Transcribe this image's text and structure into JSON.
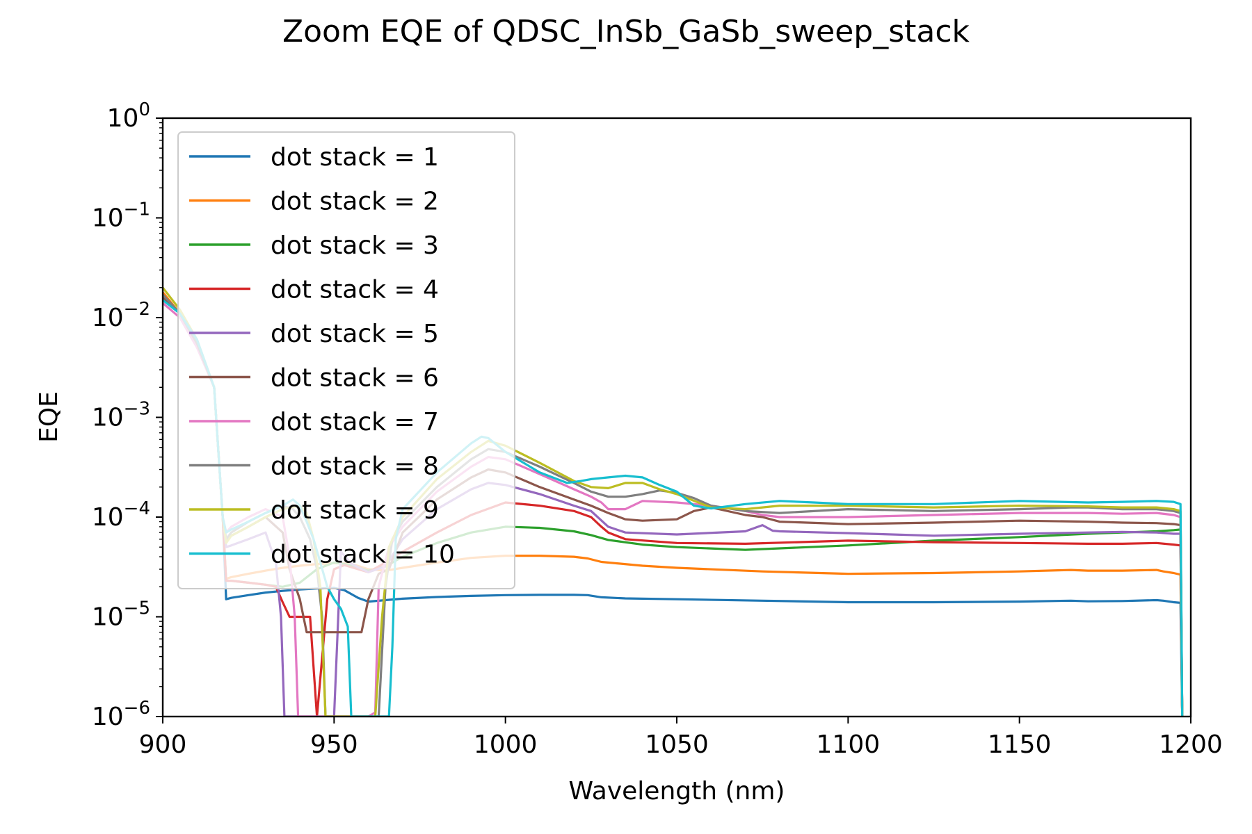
{
  "chart_data": {
    "type": "line",
    "title": "Zoom EQE of QDSC_InSb_GaSb_sweep_stack",
    "xlabel": "Wavelength (nm)",
    "ylabel": "EQE",
    "xlim": [
      900,
      1200
    ],
    "ylim": [
      1e-06,
      1
    ],
    "y_scale": "log",
    "x_ticks": [
      900,
      950,
      1000,
      1050,
      1100,
      1150,
      1200
    ],
    "x_tick_labels": [
      "900",
      "950",
      "1000",
      "1050",
      "1100",
      "1150",
      "1200"
    ],
    "y_ticks": [
      1e-06,
      1e-05,
      0.0001,
      0.001,
      0.01,
      0.1,
      1
    ],
    "y_tick_exponents": [
      "−6",
      "−5",
      "−4",
      "−3",
      "−2",
      "−1",
      "0"
    ],
    "y_tick_base": "10",
    "legend_position": "upper-left",
    "grid": false,
    "series": [
      {
        "name": "dot stack = 1",
        "color": "#1f77b4",
        "x": [
          900,
          905,
          910,
          915,
          917.5,
          918.5,
          920,
          925,
          930,
          935,
          940,
          945,
          950,
          953,
          957,
          960,
          965,
          970,
          980,
          990,
          1000,
          1010,
          1020,
          1024,
          1028,
          1035,
          1050,
          1075,
          1100,
          1125,
          1150,
          1165,
          1170,
          1180,
          1190,
          1192,
          1195,
          1197,
          1197.5
        ],
        "y": [
          0.017,
          0.011,
          0.0055,
          0.002,
          0.0001,
          1.5e-05,
          1.55e-05,
          1.65e-05,
          1.75e-05,
          1.82e-05,
          1.88e-05,
          1.92e-05,
          1.95e-05,
          1.85e-05,
          1.55e-05,
          1.42e-05,
          1.47e-05,
          1.52e-05,
          1.58e-05,
          1.62e-05,
          1.65e-05,
          1.66e-05,
          1.66e-05,
          1.65e-05,
          1.57e-05,
          1.53e-05,
          1.5e-05,
          1.45e-05,
          1.4e-05,
          1.4e-05,
          1.42e-05,
          1.45e-05,
          1.43e-05,
          1.44e-05,
          1.47e-05,
          1.45e-05,
          1.4e-05,
          1.38e-05,
          1e-06
        ]
      },
      {
        "name": "dot stack = 2",
        "color": "#ff7f0e",
        "x": [
          900,
          905,
          910,
          915,
          917.5,
          918.5,
          920,
          925,
          930,
          935,
          940,
          945,
          950,
          955,
          960,
          965,
          970,
          980,
          990,
          1000,
          1010,
          1020,
          1024,
          1028,
          1040,
          1050,
          1075,
          1100,
          1125,
          1150,
          1165,
          1170,
          1180,
          1190,
          1192,
          1195,
          1197,
          1197.5
        ],
        "y": [
          0.018,
          0.011,
          0.0055,
          0.002,
          0.0001,
          2.4e-05,
          2.5e-05,
          2.7e-05,
          2.9e-05,
          3.1e-05,
          3.25e-05,
          3.38e-05,
          3.45e-05,
          3.4e-05,
          3e-05,
          2.9e-05,
          3.1e-05,
          3.5e-05,
          3.9e-05,
          4.1e-05,
          4.1e-05,
          4e-05,
          3.85e-05,
          3.55e-05,
          3.25e-05,
          3.1e-05,
          2.85e-05,
          2.7e-05,
          2.75e-05,
          2.85e-05,
          2.95e-05,
          2.9e-05,
          2.9e-05,
          2.95e-05,
          2.85e-05,
          2.75e-05,
          2.65e-05,
          1e-06
        ]
      },
      {
        "name": "dot stack = 3",
        "color": "#2ca02c",
        "x": [
          900,
          905,
          910,
          915,
          917.5,
          918.5,
          920,
          925,
          930,
          935,
          940,
          945,
          950,
          955,
          960,
          965,
          970,
          980,
          990,
          1000,
          1010,
          1020,
          1025,
          1030,
          1040,
          1050,
          1070,
          1100,
          1125,
          1150,
          1170,
          1180,
          1190,
          1195,
          1197,
          1197.5
        ],
        "y": [
          0.017,
          0.011,
          0.0055,
          0.002,
          0.0001,
          2.3e-05,
          2.3e-05,
          2.2e-05,
          2.1e-05,
          2e-05,
          2.2e-05,
          3e-05,
          3.5e-05,
          3.3e-05,
          2.9e-05,
          3.2e-05,
          4e-05,
          5.5e-05,
          7e-05,
          8e-05,
          7.8e-05,
          7.2e-05,
          6.6e-05,
          5.9e-05,
          5.3e-05,
          5e-05,
          4.7e-05,
          5.2e-05,
          5.8e-05,
          6.3e-05,
          6.8e-05,
          7e-05,
          7.2e-05,
          7.4e-05,
          7.5e-05,
          1e-06
        ]
      },
      {
        "name": "dot stack = 4",
        "color": "#d62728",
        "x": [
          900,
          905,
          910,
          915,
          917.5,
          918.5,
          920,
          925,
          930,
          933,
          935,
          937,
          940,
          943,
          945,
          948,
          950,
          953,
          957,
          960,
          965,
          970,
          980,
          990,
          1000,
          1010,
          1020,
          1025,
          1028,
          1030,
          1035,
          1050,
          1070,
          1100,
          1125,
          1150,
          1170,
          1180,
          1190,
          1195,
          1197,
          1197.5
        ],
        "y": [
          0.017,
          0.011,
          0.0055,
          0.002,
          0.0001,
          2.3e-05,
          2.3e-05,
          2.2e-05,
          2.1e-05,
          2e-05,
          1.4e-05,
          1e-05,
          1e-05,
          1e-05,
          1e-06,
          1.5e-05,
          3e-05,
          3.3e-05,
          3e-05,
          2.8e-05,
          3.5e-05,
          4.5e-05,
          7e-05,
          0.000105,
          0.00014,
          0.00013,
          0.000115,
          0.0001,
          8e-05,
          7e-05,
          6e-05,
          5.5e-05,
          5.4e-05,
          5.8e-05,
          5.6e-05,
          5.5e-05,
          5.4e-05,
          5.4e-05,
          5.5e-05,
          5.3e-05,
          5.2e-05,
          1e-06
        ]
      },
      {
        "name": "dot stack = 5",
        "color": "#9467bd",
        "x": [
          900,
          905,
          910,
          915,
          917.5,
          918.5,
          920,
          925,
          930,
          933,
          934.5,
          935.5,
          936.5,
          944,
          948,
          950,
          952,
          955,
          960,
          965,
          970,
          980,
          990,
          995,
          1000,
          1010,
          1020,
          1025,
          1030,
          1035,
          1050,
          1070,
          1075,
          1078,
          1080,
          1100,
          1125,
          1150,
          1170,
          1180,
          1190,
          1195,
          1197,
          1197.5
        ],
        "y": [
          0.016,
          0.011,
          0.0055,
          0.002,
          0.0001,
          5e-05,
          5.2e-05,
          6e-05,
          7e-05,
          3.5e-05,
          1e-05,
          1e-06,
          1e-06,
          1e-06,
          1e-06,
          1e-06,
          4.5e-05,
          3.4e-05,
          2.8e-05,
          3.2e-05,
          6e-05,
          0.00012,
          0.00019,
          0.00022,
          0.00021,
          0.00017,
          0.00013,
          0.000115,
          8e-05,
          7e-05,
          6.7e-05,
          7.2e-05,
          8.3e-05,
          7.3e-05,
          7.2e-05,
          6.9e-05,
          6.5e-05,
          6.8e-05,
          7e-05,
          7.1e-05,
          7e-05,
          6.8e-05,
          6.8e-05,
          1e-06
        ]
      },
      {
        "name": "dot stack = 6",
        "color": "#8c564b",
        "x": [
          900,
          905,
          910,
          915,
          917.5,
          918.5,
          920,
          925,
          930,
          935,
          937,
          940,
          942,
          945,
          950,
          955,
          958,
          960,
          963,
          966,
          970,
          980,
          990,
          995,
          1000,
          1010,
          1020,
          1025,
          1030,
          1035,
          1040,
          1050,
          1055,
          1060,
          1070,
          1075,
          1080,
          1100,
          1125,
          1150,
          1170,
          1180,
          1190,
          1195,
          1197,
          1197.5
        ],
        "y": [
          0.016,
          0.011,
          0.0055,
          0.002,
          0.0001,
          6e-05,
          6.5e-05,
          8e-05,
          0.0001,
          7e-05,
          3e-05,
          1.5e-05,
          7e-06,
          7e-06,
          7e-06,
          7e-06,
          7e-06,
          1.5e-05,
          2.7e-05,
          3e-05,
          7e-05,
          0.00015,
          0.00025,
          0.0003,
          0.00028,
          0.0002,
          0.00015,
          0.00013,
          0.00011,
          9.5e-05,
          9.2e-05,
          9.5e-05,
          0.000115,
          0.000125,
          0.000105,
          0.0001,
          9e-05,
          8.5e-05,
          8.8e-05,
          9.2e-05,
          9e-05,
          8.8e-05,
          8.7e-05,
          8.5e-05,
          8.3e-05,
          1e-06
        ]
      },
      {
        "name": "dot stack = 7",
        "color": "#e377c2",
        "x": [
          900,
          905,
          910,
          915,
          917.5,
          918.5,
          920,
          925,
          930,
          935,
          937,
          938.5,
          939.5,
          960,
          962,
          963,
          966,
          970,
          980,
          990,
          995,
          1000,
          1010,
          1020,
          1025,
          1028,
          1030,
          1035,
          1040,
          1050,
          1060,
          1070,
          1075,
          1080,
          1100,
          1125,
          1150,
          1170,
          1180,
          1190,
          1195,
          1197,
          1197.5
        ],
        "y": [
          0.014,
          0.01,
          0.005,
          0.002,
          0.0001,
          7e-05,
          8e-05,
          0.0001,
          0.00012,
          0.0001,
          4e-05,
          1e-05,
          1e-06,
          1e-06,
          1.1e-06,
          2e-05,
          5e-05,
          8e-05,
          0.00018,
          0.00032,
          0.0004,
          0.00038,
          0.00027,
          0.00019,
          0.00016,
          0.00014,
          0.00012,
          0.00012,
          0.000145,
          0.00014,
          0.00013,
          0.000115,
          0.000105,
          0.0001,
          0.0001,
          0.000105,
          0.00011,
          0.00011,
          0.000108,
          0.00011,
          0.000105,
          0.0001,
          1e-06
        ]
      },
      {
        "name": "dot stack = 8",
        "color": "#7f7f7f",
        "x": [
          900,
          905,
          910,
          915,
          917.5,
          918.5,
          920,
          925,
          930,
          935,
          938,
          940,
          943,
          945,
          946.5,
          947.5,
          963,
          965,
          967,
          970,
          980,
          990,
          995,
          1000,
          1010,
          1020,
          1025,
          1030,
          1035,
          1040,
          1045,
          1050,
          1055,
          1060,
          1070,
          1080,
          1100,
          1125,
          1150,
          1165,
          1170,
          1180,
          1190,
          1195,
          1197,
          1197.5
        ],
        "y": [
          0.017,
          0.011,
          0.0055,
          0.002,
          0.0001,
          6e-05,
          7e-05,
          9e-05,
          0.00011,
          0.00013,
          0.00012,
          0.0001,
          6e-05,
          3e-05,
          1e-05,
          1e-06,
          1e-06,
          2e-05,
          6e-05,
          9e-05,
          0.0002,
          0.00038,
          0.00048,
          0.00045,
          0.00032,
          0.00022,
          0.00018,
          0.00016,
          0.00016,
          0.00017,
          0.000185,
          0.000175,
          0.000155,
          0.00013,
          0.000115,
          0.00011,
          0.00012,
          0.000115,
          0.00012,
          0.000125,
          0.000125,
          0.00012,
          0.00012,
          0.000115,
          0.00011,
          1e-06
        ]
      },
      {
        "name": "dot stack = 9",
        "color": "#bcbd22",
        "x": [
          900,
          905,
          910,
          915,
          917.5,
          918.5,
          920,
          925,
          930,
          935,
          940,
          942,
          944,
          946,
          947.5,
          962,
          964,
          966,
          970,
          980,
          990,
          995,
          1000,
          1010,
          1020,
          1025,
          1030,
          1035,
          1040,
          1045,
          1050,
          1060,
          1070,
          1080,
          1100,
          1125,
          1150,
          1170,
          1180,
          1190,
          1195,
          1197,
          1197.5
        ],
        "y": [
          0.02,
          0.012,
          0.006,
          0.002,
          0.0001,
          5.5e-05,
          6.5e-05,
          8e-05,
          0.0001,
          0.00012,
          0.00013,
          0.00011,
          6e-05,
          2e-05,
          1e-06,
          1e-06,
          1e-05,
          5e-05,
          0.0001,
          0.00024,
          0.00045,
          0.00058,
          0.00052,
          0.00035,
          0.00023,
          0.0002,
          0.000195,
          0.00022,
          0.00022,
          0.00019,
          0.00017,
          0.000125,
          0.00012,
          0.00013,
          0.00013,
          0.000125,
          0.00013,
          0.000128,
          0.000125,
          0.000125,
          0.00012,
          0.000115,
          1e-06
        ]
      },
      {
        "name": "dot stack = 10",
        "color": "#17becf",
        "x": [
          900,
          905,
          910,
          915,
          917.5,
          918.5,
          920,
          925,
          930,
          935,
          938,
          940,
          942,
          944,
          946,
          948,
          950,
          952,
          954,
          955,
          956,
          957,
          958,
          960,
          962,
          963,
          964,
          965,
          966,
          967,
          968,
          970,
          980,
          990,
          993,
          995,
          1000,
          1010,
          1018,
          1022,
          1025,
          1030,
          1035,
          1040,
          1045,
          1050,
          1055,
          1060,
          1070,
          1080,
          1090,
          1100,
          1125,
          1150,
          1170,
          1180,
          1190,
          1195,
          1197,
          1197.5
        ],
        "y": [
          0.015,
          0.011,
          0.006,
          0.002,
          0.0001,
          7e-05,
          7.5e-05,
          9e-05,
          0.00011,
          0.00013,
          0.00015,
          0.00013,
          9e-05,
          6e-05,
          3.5e-05,
          2e-05,
          1.5e-05,
          1.2e-05,
          8e-06,
          1e-06,
          1e-06,
          1e-06,
          1e-06,
          1e-06,
          1e-06,
          1e-06,
          1e-06,
          1e-06,
          1e-06,
          5e-06,
          6e-05,
          0.00012,
          0.00028,
          0.00055,
          0.00064,
          0.00062,
          0.00045,
          0.00028,
          0.00022,
          0.00023,
          0.00024,
          0.00025,
          0.00026,
          0.00025,
          0.00021,
          0.00018,
          0.00013,
          0.000122,
          0.000135,
          0.000145,
          0.00014,
          0.000135,
          0.000135,
          0.000145,
          0.00014,
          0.000142,
          0.000145,
          0.000142,
          0.000135,
          1e-06
        ]
      }
    ]
  }
}
